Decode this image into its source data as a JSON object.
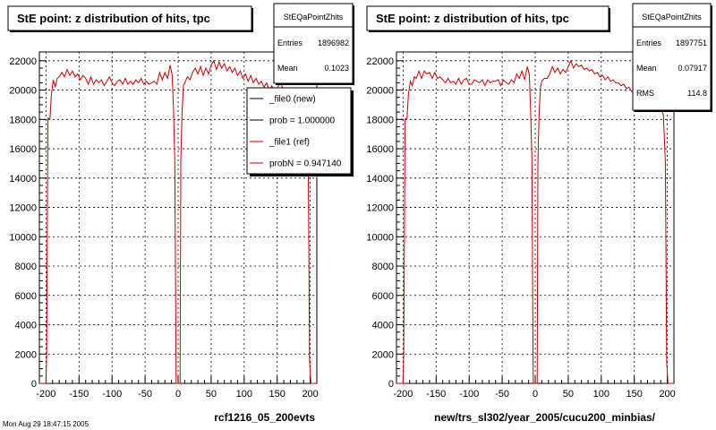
{
  "footer": "Mon Aug 29 18:47:15 2005",
  "chart_data": [
    {
      "type": "line",
      "title": "StE point: z distribution of hits, tpc",
      "xlabel": "rcf1216_05_200evts",
      "ylabel": "",
      "xlim": [
        -210,
        210
      ],
      "ylim": [
        0,
        22600
      ],
      "xticks": [
        -200,
        -150,
        -100,
        -50,
        0,
        50,
        100,
        150,
        200
      ],
      "yticks": [
        0,
        2000,
        4000,
        6000,
        8000,
        10000,
        12000,
        14000,
        16000,
        18000,
        20000,
        22000
      ],
      "grid": true,
      "stats": {
        "title": "StEQaPointZhits",
        "rows": [
          {
            "label": "Entries",
            "value": "1896982"
          },
          {
            "label": "Mean",
            "value": "0.1023"
          }
        ]
      },
      "legend": {
        "placement": "top-right",
        "entries": [
          {
            "label": "_file0 (new)",
            "color": "#000000"
          },
          {
            "label": "prob = 1.000000",
            "color": "#000000"
          },
          {
            "label": "_file1 (ref)",
            "color": "#cc0000"
          },
          {
            "label": "probN = 0.947140",
            "color": "#cc0000"
          }
        ]
      },
      "series": [
        {
          "color": "#cc0000",
          "points": [
            [
              -210,
              0
            ],
            [
              -200,
              0
            ],
            [
              -199,
              2000
            ],
            [
              -197,
              18100
            ],
            [
              -194,
              18000
            ],
            [
              -192,
              19600
            ],
            [
              -189,
              20700
            ],
            [
              -186,
              20200
            ],
            [
              -183,
              20800
            ],
            [
              -180,
              20900
            ],
            [
              -176,
              21200
            ],
            [
              -172,
              20900
            ],
            [
              -168,
              21400
            ],
            [
              -164,
              21000
            ],
            [
              -160,
              21300
            ],
            [
              -156,
              20900
            ],
            [
              -152,
              21100
            ],
            [
              -148,
              20700
            ],
            [
              -144,
              21000
            ],
            [
              -140,
              20800
            ],
            [
              -136,
              20400
            ],
            [
              -132,
              20900
            ],
            [
              -128,
              20400
            ],
            [
              -124,
              20700
            ],
            [
              -120,
              20500
            ],
            [
              -116,
              20700
            ],
            [
              -112,
              20300
            ],
            [
              -108,
              20600
            ],
            [
              -104,
              20900
            ],
            [
              -100,
              20500
            ],
            [
              -96,
              20300
            ],
            [
              -92,
              20600
            ],
            [
              -88,
              20700
            ],
            [
              -84,
              20400
            ],
            [
              -80,
              20800
            ],
            [
              -76,
              20400
            ],
            [
              -72,
              20600
            ],
            [
              -68,
              20400
            ],
            [
              -64,
              20700
            ],
            [
              -60,
              20500
            ],
            [
              -56,
              20800
            ],
            [
              -52,
              20400
            ],
            [
              -48,
              20600
            ],
            [
              -44,
              20400
            ],
            [
              -40,
              20500
            ],
            [
              -36,
              20600
            ],
            [
              -32,
              20400
            ],
            [
              -28,
              21200
            ],
            [
              -24,
              20700
            ],
            [
              -20,
              21200
            ],
            [
              -16,
              20800
            ],
            [
              -12,
              21700
            ],
            [
              -9,
              21000
            ],
            [
              -7,
              18800
            ],
            [
              -5,
              15200
            ],
            [
              -3,
              0
            ],
            [
              3,
              0
            ],
            [
              4,
              15200
            ],
            [
              6,
              18400
            ],
            [
              8,
              20300
            ],
            [
              10,
              20500
            ],
            [
              14,
              20900
            ],
            [
              18,
              20700
            ],
            [
              22,
              21200
            ],
            [
              26,
              21500
            ],
            [
              30,
              21100
            ],
            [
              34,
              21600
            ],
            [
              38,
              21000
            ],
            [
              42,
              21500
            ],
            [
              46,
              21100
            ],
            [
              50,
              21700
            ],
            [
              54,
              22000
            ],
            [
              58,
              21400
            ],
            [
              62,
              21900
            ],
            [
              66,
              21500
            ],
            [
              70,
              21800
            ],
            [
              74,
              21300
            ],
            [
              78,
              21600
            ],
            [
              82,
              21200
            ],
            [
              86,
              21500
            ],
            [
              90,
              21000
            ],
            [
              94,
              21300
            ],
            [
              98,
              20800
            ],
            [
              102,
              21100
            ],
            [
              106,
              20600
            ],
            [
              110,
              21000
            ],
            [
              114,
              20500
            ],
            [
              118,
              20800
            ],
            [
              122,
              20400
            ],
            [
              126,
              20600
            ],
            [
              130,
              20200
            ],
            [
              134,
              20500
            ],
            [
              138,
              20000
            ],
            [
              142,
              20300
            ],
            [
              146,
              19800
            ],
            [
              150,
              20100
            ],
            [
              154,
              20500
            ],
            [
              158,
              20200
            ],
            [
              162,
              20000
            ],
            [
              166,
              19600
            ],
            [
              170,
              19900
            ],
            [
              174,
              19500
            ],
            [
              178,
              19800
            ],
            [
              182,
              19400
            ],
            [
              186,
              19100
            ],
            [
              190,
              18700
            ],
            [
              194,
              18400
            ],
            [
              197,
              15000
            ],
            [
              199,
              1500
            ],
            [
              201,
              0
            ],
            [
              210,
              0
            ]
          ]
        }
      ]
    },
    {
      "type": "line",
      "title": "StE point: z distribution of hits, tpc",
      "xlabel": "new/trs_sl302/year_2005/cucu200_minbias/",
      "ylabel": "",
      "xlim": [
        -210,
        210
      ],
      "ylim": [
        0,
        22600
      ],
      "xticks": [
        -200,
        -150,
        -100,
        -50,
        0,
        50,
        100,
        150,
        200
      ],
      "yticks": [
        0,
        2000,
        4000,
        6000,
        8000,
        10000,
        12000,
        14000,
        16000,
        18000,
        20000,
        22000
      ],
      "grid": true,
      "stats": {
        "title": "StEQaPointZhits",
        "rows": [
          {
            "label": "Entries",
            "value": "1897751"
          },
          {
            "label": "Mean",
            "value": "0.07917"
          },
          {
            "label": "RMS",
            "value": "114.8"
          }
        ]
      },
      "legend": null,
      "series": [
        {
          "color": "#cc0000",
          "points": [
            [
              -210,
              0
            ],
            [
              -200,
              0
            ],
            [
              -199,
              2000
            ],
            [
              -197,
              18000
            ],
            [
              -194,
              18100
            ],
            [
              -192,
              19700
            ],
            [
              -189,
              20600
            ],
            [
              -186,
              20300
            ],
            [
              -183,
              20900
            ],
            [
              -180,
              20800
            ],
            [
              -176,
              21300
            ],
            [
              -172,
              20800
            ],
            [
              -168,
              21300
            ],
            [
              -164,
              21100
            ],
            [
              -160,
              21200
            ],
            [
              -156,
              20800
            ],
            [
              -152,
              21200
            ],
            [
              -148,
              20800
            ],
            [
              -144,
              20900
            ],
            [
              -140,
              20700
            ],
            [
              -136,
              20500
            ],
            [
              -132,
              20800
            ],
            [
              -128,
              20500
            ],
            [
              -124,
              20600
            ],
            [
              -120,
              20400
            ],
            [
              -116,
              20800
            ],
            [
              -112,
              20400
            ],
            [
              -108,
              20700
            ],
            [
              -104,
              20800
            ],
            [
              -100,
              20400
            ],
            [
              -96,
              20400
            ],
            [
              -92,
              20700
            ],
            [
              -88,
              20600
            ],
            [
              -84,
              20500
            ],
            [
              -80,
              20700
            ],
            [
              -76,
              20300
            ],
            [
              -72,
              20700
            ],
            [
              -68,
              20500
            ],
            [
              -64,
              20600
            ],
            [
              -60,
              20600
            ],
            [
              -56,
              20700
            ],
            [
              -52,
              20300
            ],
            [
              -48,
              20700
            ],
            [
              -44,
              20500
            ],
            [
              -40,
              20400
            ],
            [
              -36,
              20700
            ],
            [
              -32,
              20500
            ],
            [
              -28,
              21100
            ],
            [
              -24,
              20800
            ],
            [
              -20,
              21300
            ],
            [
              -16,
              20700
            ],
            [
              -12,
              21600
            ],
            [
              -9,
              21100
            ],
            [
              -7,
              18700
            ],
            [
              -5,
              15300
            ],
            [
              -3,
              0
            ],
            [
              3,
              0
            ],
            [
              4,
              15100
            ],
            [
              6,
              18500
            ],
            [
              8,
              20200
            ],
            [
              10,
              20600
            ],
            [
              14,
              20800
            ],
            [
              18,
              20800
            ],
            [
              22,
              21100
            ],
            [
              26,
              21600
            ],
            [
              30,
              21200
            ],
            [
              34,
              21500
            ],
            [
              38,
              21100
            ],
            [
              42,
              21400
            ],
            [
              46,
              21200
            ],
            [
              50,
              21600
            ],
            [
              54,
              22000
            ],
            [
              58,
              21500
            ],
            [
              62,
              21800
            ],
            [
              66,
              21600
            ],
            [
              70,
              21700
            ],
            [
              74,
              21400
            ],
            [
              78,
              21500
            ],
            [
              82,
              21300
            ],
            [
              86,
              21400
            ],
            [
              90,
              21100
            ],
            [
              94,
              21200
            ],
            [
              98,
              20900
            ],
            [
              102,
              21000
            ],
            [
              106,
              20700
            ],
            [
              110,
              20900
            ],
            [
              114,
              20600
            ],
            [
              118,
              20700
            ],
            [
              122,
              20500
            ],
            [
              126,
              20500
            ],
            [
              130,
              20300
            ],
            [
              134,
              20400
            ],
            [
              138,
              20100
            ],
            [
              142,
              20200
            ],
            [
              146,
              19900
            ],
            [
              150,
              20000
            ],
            [
              154,
              20400
            ],
            [
              158,
              20300
            ],
            [
              162,
              19900
            ],
            [
              166,
              19700
            ],
            [
              170,
              19800
            ],
            [
              174,
              19600
            ],
            [
              178,
              19700
            ],
            [
              182,
              19500
            ],
            [
              186,
              19000
            ],
            [
              190,
              18800
            ],
            [
              194,
              18300
            ],
            [
              197,
              15100
            ],
            [
              199,
              1400
            ],
            [
              201,
              0
            ],
            [
              210,
              0
            ]
          ]
        }
      ]
    }
  ]
}
